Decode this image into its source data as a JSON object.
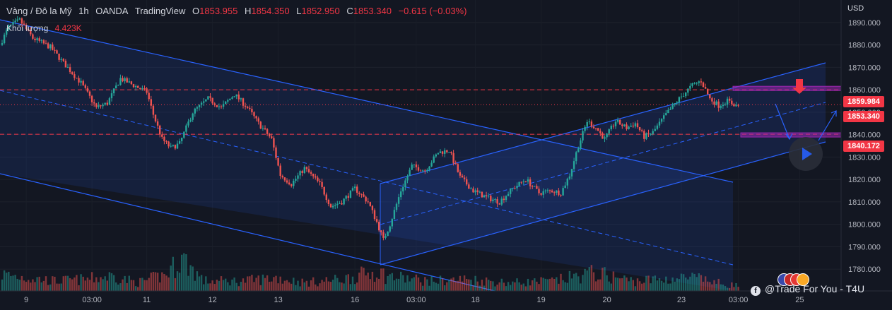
{
  "header": {
    "symbol": "Vàng / Đô la Mỹ",
    "interval": "1h",
    "exchange": "OANDA",
    "source": "TradingView",
    "ohlc": {
      "o_label": "O",
      "o": "1853.955",
      "h_label": "H",
      "h": "1854.350",
      "l_label": "L",
      "l": "1852.950",
      "c_label": "C",
      "c": "1853.340",
      "change": "−0.615 (−0.03%)"
    },
    "volume_label": "Khối lượng",
    "volume_value": "4.423K"
  },
  "currency": "USD",
  "price_tags": {
    "upper": "1859.984",
    "last": "1853.340",
    "lower": "1840.172"
  },
  "watermark": "@Trade For You - T4U",
  "colors": {
    "background": "#131722",
    "up": "#26a69a",
    "down": "#ef5350",
    "channel": "#2962ff",
    "level": "#f23645",
    "rect": "#9c27b0"
  },
  "chart_data": {
    "type": "candlestick",
    "ylim": [
      1775,
      1895
    ],
    "y_ticks": [
      "1780.000",
      "1790.000",
      "1800.000",
      "1810.000",
      "1820.000",
      "1830.000",
      "1840.000",
      "1850.000",
      "1860.000",
      "1870.000",
      "1880.000",
      "1890.000"
    ],
    "x_ticks": [
      "9",
      "03:00",
      "11",
      "12",
      "13",
      "16",
      "03:00",
      "18",
      "19",
      "20",
      "23",
      "03:00",
      "25"
    ],
    "horizontal_levels": [
      1859.984,
      1840.172
    ],
    "last_price": 1853.34,
    "price_path": [
      [
        0,
        1880
      ],
      [
        4,
        1888
      ],
      [
        9,
        1891
      ],
      [
        15,
        1883
      ],
      [
        23,
        1879
      ],
      [
        29,
        1872
      ],
      [
        37,
        1863
      ],
      [
        44,
        1852
      ],
      [
        49,
        1854
      ],
      [
        55,
        1865
      ],
      [
        61,
        1862
      ],
      [
        67,
        1859
      ],
      [
        70,
        1849
      ],
      [
        74,
        1838
      ],
      [
        78,
        1834
      ],
      [
        82,
        1836
      ],
      [
        88,
        1850
      ],
      [
        95,
        1856
      ],
      [
        101,
        1852
      ],
      [
        107,
        1858
      ],
      [
        113,
        1852
      ],
      [
        118,
        1845
      ],
      [
        124,
        1838
      ],
      [
        128,
        1822
      ],
      [
        133,
        1818
      ],
      [
        139,
        1825
      ],
      [
        146,
        1818
      ],
      [
        151,
        1808
      ],
      [
        156,
        1810
      ],
      [
        162,
        1816
      ],
      [
        168,
        1810
      ],
      [
        172,
        1801
      ],
      [
        175,
        1793
      ],
      [
        178,
        1800
      ],
      [
        183,
        1815
      ],
      [
        188,
        1826
      ],
      [
        194,
        1824
      ],
      [
        200,
        1832
      ],
      [
        205,
        1833
      ],
      [
        210,
        1821
      ],
      [
        216,
        1815
      ],
      [
        222,
        1812
      ],
      [
        228,
        1810
      ],
      [
        234,
        1816
      ],
      [
        240,
        1820
      ],
      [
        246,
        1814
      ],
      [
        252,
        1815
      ],
      [
        256,
        1814
      ],
      [
        260,
        1822
      ],
      [
        264,
        1835
      ],
      [
        268,
        1846
      ],
      [
        272,
        1843
      ],
      [
        276,
        1838
      ],
      [
        281,
        1846
      ],
      [
        286,
        1843
      ],
      [
        290,
        1845
      ],
      [
        294,
        1839
      ],
      [
        298,
        1841
      ],
      [
        304,
        1849
      ],
      [
        310,
        1856
      ],
      [
        316,
        1862
      ],
      [
        320,
        1864
      ],
      [
        324,
        1856
      ],
      [
        328,
        1853
      ],
      [
        332,
        1855
      ],
      [
        336,
        1853
      ]
    ],
    "volume_path": [
      [
        0,
        0.5
      ],
      [
        12,
        0.4
      ],
      [
        24,
        0.3
      ],
      [
        38,
        0.35
      ],
      [
        50,
        0.45
      ],
      [
        62,
        0.25
      ],
      [
        75,
        0.5
      ],
      [
        82,
        1.0
      ],
      [
        92,
        0.3
      ],
      [
        110,
        0.3
      ],
      [
        125,
        0.4
      ],
      [
        138,
        0.25
      ],
      [
        155,
        0.35
      ],
      [
        172,
        0.6
      ],
      [
        175,
        0.45
      ],
      [
        195,
        0.3
      ],
      [
        212,
        0.35
      ],
      [
        232,
        0.25
      ],
      [
        252,
        0.3
      ],
      [
        270,
        0.55
      ],
      [
        288,
        0.3
      ],
      [
        300,
        0.35
      ],
      [
        315,
        0.4
      ],
      [
        330,
        0.2
      ],
      [
        345,
        0.1
      ]
    ]
  }
}
